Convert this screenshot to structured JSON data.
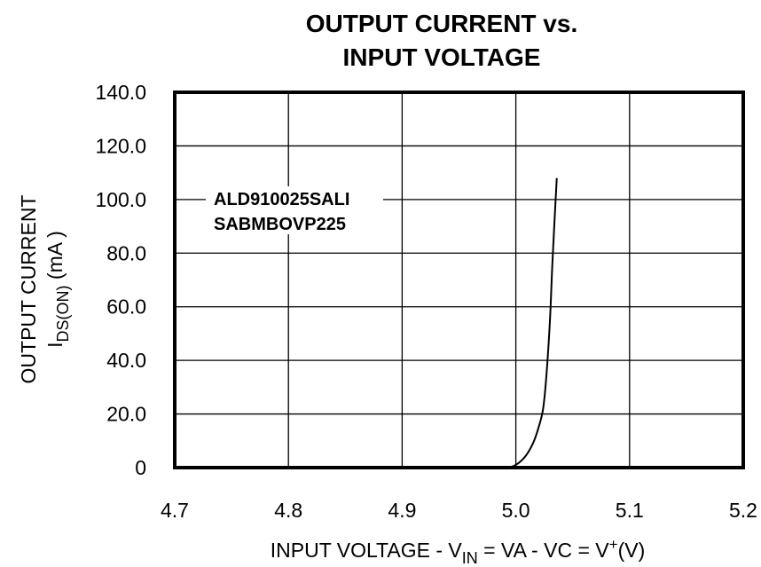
{
  "chart_data": {
    "type": "line",
    "title_line1": "OUTPUT CURRENT vs.",
    "title_line2": "INPUT VOLTAGE",
    "ylabel_line1": "OUTPUT CURRENT",
    "ylabel_line2_main": "I",
    "ylabel_line2_sub": "DS(ON)",
    "ylabel_line2_unit": " (mA )",
    "xlabel_prefix": "INPUT VOLTAGE  -  V",
    "xlabel_sub": "IN",
    "xlabel_mid": " = VA - VC = V",
    "xlabel_sup": "+",
    "xlabel_suffix": "(V)",
    "annotation_line1": "ALD910025SALI",
    "annotation_line2": "SABMBOVP225",
    "xlim": [
      4.7,
      5.2
    ],
    "ylim": [
      0,
      140
    ],
    "x_ticks": [
      4.7,
      4.8,
      4.9,
      5.0,
      5.1,
      5.2
    ],
    "x_tick_labels": [
      "4.7",
      "4.8",
      "4.9",
      "5.0",
      "5.1",
      "5.2"
    ],
    "y_ticks": [
      0,
      20,
      40,
      60,
      80,
      100,
      120,
      140
    ],
    "y_tick_labels": [
      "0",
      "20.0",
      "40.0",
      "60.0",
      "80.0",
      "100.0",
      "120.0",
      "140.0"
    ],
    "grid": true,
    "series": [
      {
        "x": [
          4.993,
          5.0,
          5.008,
          5.015,
          5.02,
          5.024,
          5.027,
          5.03,
          5.032,
          5.034,
          5.036
        ],
        "y": [
          0,
          1,
          4,
          9,
          15,
          22,
          35,
          55,
          75,
          92,
          108
        ]
      }
    ]
  }
}
